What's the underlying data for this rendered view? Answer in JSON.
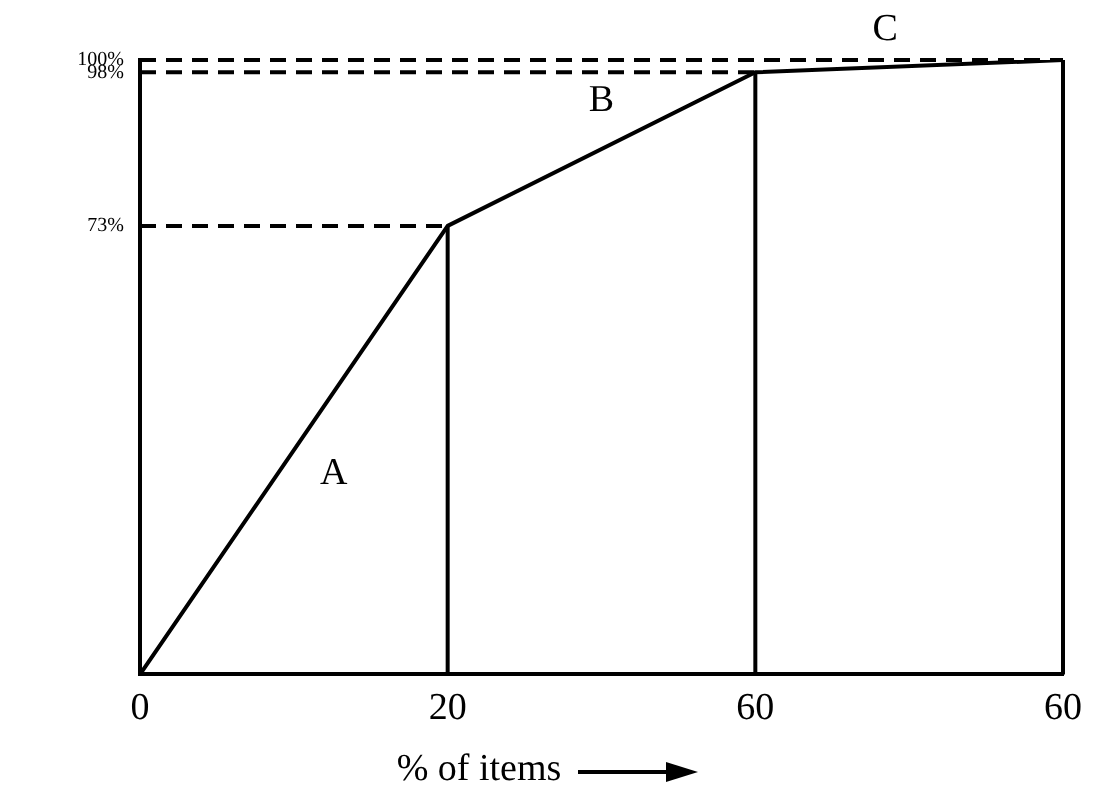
{
  "chart_data": {
    "type": "line",
    "xlabel": "% of items",
    "categories": [
      "0",
      "20",
      "60",
      "60"
    ],
    "series": [
      {
        "color": "#000000",
        "values": [
          0,
          73,
          98,
          100
        ]
      }
    ],
    "ylim": [
      0,
      100
    ],
    "yticks": [
      {
        "value": 73,
        "label": "73%"
      },
      {
        "value": 98,
        "label": "98%"
      },
      {
        "value": 100,
        "label": "100%"
      }
    ],
    "grid": false,
    "legend": false,
    "marker": "none",
    "line_style": "solid",
    "ref_lines": [
      {
        "axis": "y",
        "value": 73,
        "line_style": "dashed",
        "color": "#000000"
      },
      {
        "axis": "y",
        "value": 98,
        "line_style": "dashed",
        "color": "#000000"
      },
      {
        "axis": "y",
        "value": 100,
        "line_style": "dashed",
        "color": "#000000"
      },
      {
        "axis": "x",
        "value": "20",
        "line_style": "solid",
        "color": "#000000"
      },
      {
        "axis": "x",
        "value": "60",
        "line_style": "solid",
        "color": "#000000"
      }
    ],
    "annotations": [
      "A",
      "B",
      "C"
    ]
  }
}
